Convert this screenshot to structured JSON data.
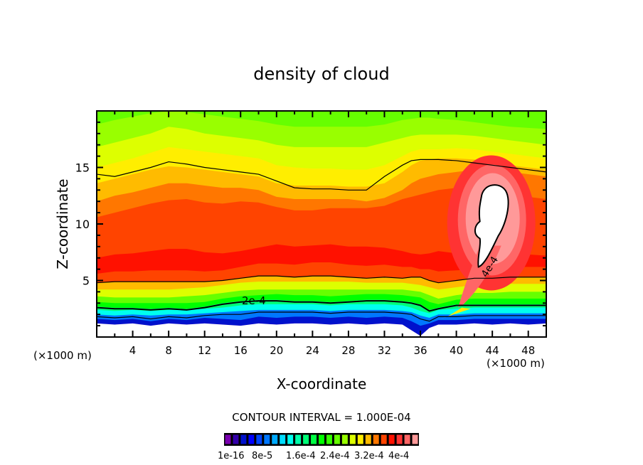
{
  "chart_data": {
    "type": "heatmap",
    "subtype": "filled-contour",
    "title": "density of cloud",
    "xlabel": "X-coordinate",
    "ylabel": "Z-coordinate",
    "x_unit_label": "(×1000 m)",
    "y_unit_label": "(×1000 m)",
    "xlim": [
      0,
      50
    ],
    "ylim": [
      0,
      20
    ],
    "x_ticks": [
      4,
      8,
      12,
      16,
      20,
      24,
      28,
      32,
      36,
      40,
      44,
      48
    ],
    "x_tick_labels": [
      "4",
      "8",
      "12",
      "16",
      "20",
      "24",
      "28",
      "32",
      "36",
      "40",
      "44",
      "48"
    ],
    "x_minor_step": 2,
    "y_ticks": [
      5,
      10,
      15
    ],
    "y_tick_labels": [
      "5",
      "10",
      "15"
    ],
    "y_minor_step": 1,
    "contour_interval_text": "CONTOUR INTERVAL = 1.000E-04",
    "contour_line_labels": [
      "2e-4",
      "4e-4"
    ],
    "colorbar": {
      "colors": [
        "#7a00b0",
        "#3300aa",
        "#0011cc",
        "#0000ff",
        "#0044ff",
        "#0077ff",
        "#00aaff",
        "#00ddff",
        "#00ffee",
        "#00ffaa",
        "#00ff77",
        "#00ff44",
        "#00ff00",
        "#33ff00",
        "#66ff00",
        "#99ff00",
        "#ddff00",
        "#ffee00",
        "#ffbb00",
        "#ff7700",
        "#ff4400",
        "#ff1100",
        "#ff3333",
        "#ff6666",
        "#ff9999"
      ],
      "tick_labels": [
        "1e-16",
        "8e-5",
        "1.6e-4",
        "2.4e-4",
        "3.2e-4",
        "4e-4"
      ],
      "range": [
        1e-16,
        0.0004
      ]
    },
    "field_x": [
      0,
      2,
      4,
      6,
      8,
      10,
      12,
      14,
      16,
      18,
      20,
      22,
      24,
      26,
      28,
      30,
      32,
      34,
      35,
      36,
      37,
      38,
      40,
      42,
      44,
      46,
      48,
      50
    ],
    "band_boundaries": [
      {
        "level_index": 0,
        "z": [
          1.2,
          1.1,
          1.2,
          1.0,
          1.2,
          1.1,
          1.2,
          1.1,
          1.0,
          1.2,
          1.1,
          1.2,
          1.2,
          1.1,
          1.2,
          1.1,
          1.2,
          1.1,
          0.6,
          0.1,
          0.8,
          1.1,
          1.1,
          1.2,
          1.1,
          1.2,
          1.1,
          1.2
        ]
      },
      {
        "level_index": 2,
        "z": [
          1.6,
          1.5,
          1.6,
          1.4,
          1.6,
          1.5,
          1.7,
          1.6,
          1.5,
          1.8,
          1.7,
          1.8,
          1.8,
          1.7,
          1.8,
          1.7,
          1.8,
          1.7,
          1.4,
          1.0,
          1.2,
          1.5,
          1.5,
          1.6,
          1.6,
          1.6,
          1.6,
          1.6
        ]
      },
      {
        "level_index": 5,
        "z": [
          2.0,
          1.9,
          2.0,
          1.9,
          2.0,
          2.0,
          2.1,
          2.2,
          2.3,
          2.4,
          2.4,
          2.4,
          2.4,
          2.3,
          2.4,
          2.4,
          2.4,
          2.3,
          2.2,
          1.9,
          1.7,
          2.0,
          2.0,
          2.1,
          2.1,
          2.1,
          2.1,
          2.1
        ]
      },
      {
        "level_index": 8,
        "z": [
          2.4,
          2.3,
          2.4,
          2.3,
          2.4,
          2.4,
          2.5,
          2.6,
          2.8,
          2.9,
          2.9,
          2.9,
          2.9,
          2.8,
          2.9,
          2.9,
          2.9,
          2.8,
          2.6,
          2.3,
          2.1,
          2.4,
          2.5,
          2.6,
          2.6,
          2.6,
          2.6,
          2.6
        ]
      },
      {
        "level_index": 10,
        "z": [
          2.7,
          2.6,
          2.6,
          2.5,
          2.6,
          2.5,
          2.7,
          3.0,
          3.2,
          3.3,
          3.3,
          3.2,
          3.2,
          3.1,
          3.2,
          3.3,
          3.3,
          3.2,
          3.1,
          2.9,
          2.4,
          2.6,
          2.9,
          2.9,
          2.9,
          2.9,
          2.9,
          2.9
        ]
      },
      {
        "level_index": 12,
        "z": [
          3.1,
          3.0,
          3.0,
          3.0,
          3.0,
          3.0,
          3.1,
          3.4,
          3.6,
          3.7,
          3.8,
          3.7,
          3.7,
          3.6,
          3.7,
          3.8,
          3.8,
          3.7,
          3.6,
          3.5,
          3.1,
          2.9,
          3.3,
          3.4,
          3.4,
          3.4,
          3.4,
          3.4
        ]
      },
      {
        "level_index": 14,
        "z": [
          3.6,
          3.5,
          3.5,
          3.5,
          3.5,
          3.6,
          3.7,
          3.9,
          4.1,
          4.2,
          4.2,
          4.2,
          4.2,
          4.2,
          4.2,
          4.2,
          4.2,
          4.2,
          4.1,
          4.0,
          3.7,
          3.4,
          3.7,
          3.9,
          3.9,
          4.0,
          4.0,
          4.0
        ]
      },
      {
        "level_index": 16,
        "z": [
          4.2,
          4.2,
          4.2,
          4.2,
          4.2,
          4.3,
          4.4,
          4.6,
          4.8,
          4.9,
          4.9,
          4.9,
          4.9,
          4.9,
          4.9,
          4.8,
          4.8,
          4.8,
          4.7,
          4.6,
          4.4,
          4.2,
          4.4,
          4.6,
          4.6,
          4.7,
          4.7,
          4.7
        ]
      },
      {
        "level_index": 18,
        "z": [
          4.8,
          4.9,
          4.9,
          4.9,
          4.9,
          4.9,
          4.9,
          5.0,
          5.2,
          5.4,
          5.4,
          5.3,
          5.4,
          5.4,
          5.3,
          5.2,
          5.3,
          5.2,
          5.3,
          5.3,
          5.0,
          4.8,
          5.0,
          5.2,
          5.2,
          5.3,
          5.3,
          5.3
        ]
      },
      {
        "level_index": 20,
        "z": [
          5.6,
          5.8,
          5.8,
          5.9,
          5.9,
          5.9,
          5.8,
          5.9,
          6.2,
          6.5,
          6.5,
          6.4,
          6.6,
          6.6,
          6.4,
          6.3,
          6.4,
          6.2,
          6.2,
          6.0,
          6.0,
          5.8,
          5.9,
          6.0,
          6.1,
          6.2,
          6.2,
          6.2
        ]
      },
      {
        "level_index": 21,
        "z": [
          7.0,
          7.3,
          7.4,
          7.6,
          7.8,
          7.8,
          7.5,
          7.4,
          7.6,
          7.9,
          8.2,
          8.0,
          8.1,
          8.2,
          8.0,
          8.0,
          7.9,
          7.6,
          7.4,
          7.3,
          7.4,
          7.6,
          7.4,
          7.2,
          7.3,
          7.4,
          7.3,
          7.2
        ]
      },
      {
        "level_index": 20,
        "z": [
          10.6,
          11.0,
          11.4,
          11.8,
          12.1,
          12.2,
          11.9,
          11.8,
          12.0,
          11.9,
          11.5,
          11.2,
          11.2,
          11.4,
          11.4,
          11.4,
          11.6,
          12.2,
          12.4,
          12.6,
          12.8,
          13.0,
          13.2,
          13.3,
          13.2,
          12.9,
          12.4,
          12.2
        ]
      },
      {
        "level_index": 19,
        "z": [
          12.0,
          12.5,
          12.8,
          13.2,
          13.6,
          13.6,
          13.4,
          13.2,
          13.2,
          13.0,
          12.4,
          12.2,
          12.2,
          12.2,
          12.2,
          12.0,
          12.3,
          13.0,
          13.6,
          14.0,
          14.2,
          14.4,
          14.6,
          14.8,
          14.8,
          14.6,
          14.4,
          14.2
        ]
      },
      {
        "level_index": 18,
        "z": [
          13.6,
          14.0,
          14.4,
          14.8,
          15.1,
          15.0,
          14.8,
          14.6,
          14.4,
          14.2,
          13.6,
          13.4,
          13.4,
          13.4,
          13.3,
          13.3,
          13.6,
          14.6,
          15.2,
          15.6,
          15.7,
          15.8,
          15.8,
          15.7,
          15.5,
          15.2,
          15.0,
          14.8
        ]
      },
      {
        "level_index": 17,
        "z": [
          15.0,
          15.4,
          15.8,
          16.3,
          16.8,
          16.6,
          16.4,
          16.2,
          16.0,
          15.8,
          15.2,
          15.0,
          14.9,
          14.9,
          14.8,
          14.8,
          15.2,
          16.0,
          16.4,
          16.6,
          16.6,
          16.6,
          16.7,
          16.6,
          16.4,
          16.2,
          16.0,
          15.8
        ]
      },
      {
        "level_index": 16,
        "z": [
          16.8,
          17.2,
          17.6,
          18.0,
          18.6,
          18.4,
          18.0,
          17.8,
          17.6,
          17.4,
          17.0,
          16.8,
          16.8,
          16.8,
          16.8,
          16.8,
          17.2,
          17.6,
          17.8,
          17.9,
          17.9,
          17.9,
          17.9,
          17.8,
          17.6,
          17.4,
          17.2,
          17.0
        ]
      },
      {
        "level_index": 15,
        "z": [
          18.8,
          19.2,
          19.5,
          19.8,
          20.0,
          19.9,
          19.7,
          19.5,
          19.3,
          19.1,
          18.8,
          18.6,
          18.6,
          18.6,
          18.6,
          18.6,
          18.8,
          19.2,
          19.3,
          19.4,
          19.4,
          19.3,
          19.2,
          19.0,
          18.8,
          18.6,
          18.5,
          18.4
        ]
      }
    ],
    "top_band_level_index": 14,
    "contour_lines": [
      {
        "label": "",
        "level": 0.0001,
        "z": [
          4.8,
          4.9,
          4.9,
          4.9,
          4.9,
          4.9,
          4.9,
          5.0,
          5.2,
          5.4,
          5.4,
          5.3,
          5.4,
          5.4,
          5.3,
          5.2,
          5.3,
          5.2,
          5.3,
          5.3,
          5.0,
          4.8,
          5.0,
          5.2,
          5.2,
          5.3,
          5.3,
          5.3
        ]
      },
      {
        "label": "2e-4",
        "level": 0.0002,
        "z": [
          2.6,
          2.5,
          2.5,
          2.4,
          2.5,
          2.4,
          2.6,
          2.9,
          3.1,
          3.2,
          3.2,
          3.1,
          3.1,
          3.0,
          3.1,
          3.2,
          3.2,
          3.1,
          3.0,
          2.8,
          2.3,
          2.5,
          2.8,
          2.8,
          2.8,
          2.8,
          2.8,
          2.8
        ]
      },
      {
        "label": "",
        "level": 5e-05,
        "z": [
          1.8,
          1.7,
          1.8,
          1.6,
          1.8,
          1.7,
          1.9,
          2.0,
          2.0,
          2.2,
          2.2,
          2.2,
          2.2,
          2.1,
          2.2,
          2.2,
          2.2,
          2.1,
          2.0,
          1.6,
          1.4,
          1.8,
          1.8,
          1.9,
          1.9,
          1.9,
          1.9,
          1.9
        ]
      },
      {
        "label": "",
        "level": 0.0001,
        "z": [
          14.4,
          14.2,
          14.6,
          15.0,
          15.5,
          15.3,
          15.0,
          14.8,
          14.6,
          14.4,
          13.8,
          13.2,
          13.1,
          13.1,
          13.0,
          13.0,
          14.2,
          15.2,
          15.6,
          15.7,
          15.7,
          15.7,
          15.6,
          15.4,
          15.2,
          15.0,
          14.8,
          14.6
        ]
      }
    ],
    "cloud_core": {
      "label": "4e-4",
      "center_x": 44.2,
      "center_z": 10.6
    }
  }
}
